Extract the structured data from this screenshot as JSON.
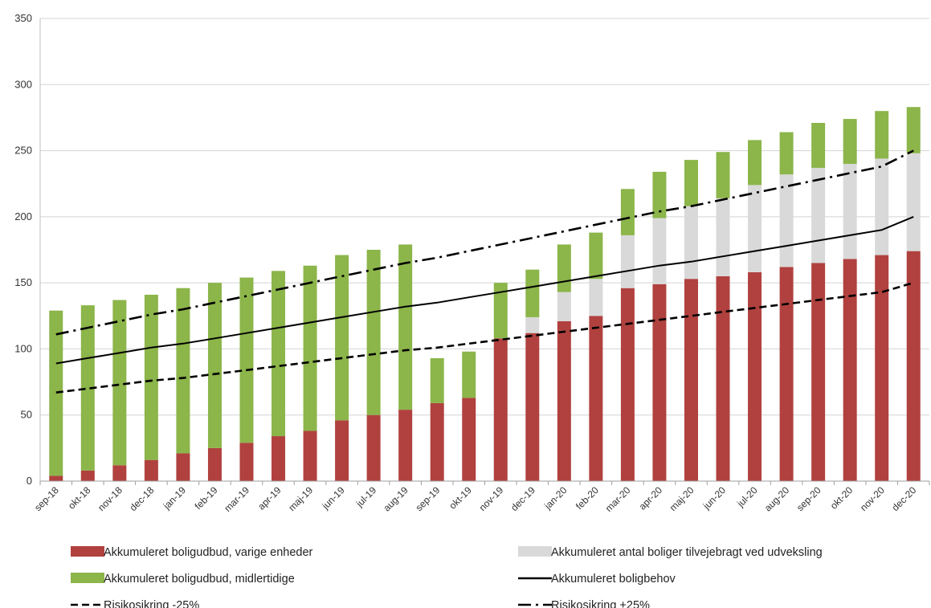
{
  "chart_data": {
    "type": "bar",
    "stacked": true,
    "categories": [
      "sep-18",
      "okt-18",
      "nov-18",
      "dec-18",
      "jan-19",
      "feb-19",
      "mar-19",
      "apr-19",
      "maj-19",
      "jun-19",
      "jul-19",
      "aug-19",
      "sep-19",
      "okt-19",
      "nov-19",
      "dec-19",
      "jan-20",
      "feb-20",
      "mar-20",
      "apr-20",
      "maj-20",
      "jun-20",
      "jul-20",
      "aug-20",
      "sep-20",
      "okt-20",
      "nov-20",
      "dec-20"
    ],
    "ylim": [
      0,
      350
    ],
    "yticks": [
      0,
      50,
      100,
      150,
      200,
      250,
      300,
      350
    ],
    "grid": true,
    "legend_position": "bottom",
    "series": [
      {
        "name": "Akkumuleret boligudbud, varige enheder",
        "kind": "bar",
        "color": "#b0413e",
        "values": [
          4,
          8,
          12,
          16,
          21,
          25,
          29,
          34,
          38,
          46,
          50,
          54,
          59,
          63,
          108,
          112,
          121,
          125,
          146,
          149,
          153,
          155,
          158,
          162,
          165,
          168,
          171,
          174
        ]
      },
      {
        "name": "Akkumuleret antal boliger tilvejebragt ved udveksling",
        "kind": "bar",
        "color": "#d9d9d9",
        "values": [
          0,
          0,
          0,
          0,
          0,
          0,
          0,
          0,
          0,
          0,
          0,
          0,
          0,
          0,
          0,
          12,
          22,
          28,
          40,
          50,
          55,
          59,
          66,
          70,
          72,
          72,
          73,
          74
        ]
      },
      {
        "name": "Akkumuleret boligudbud, midlertidige",
        "kind": "bar",
        "color": "#8cb54a",
        "values": [
          125,
          125,
          125,
          125,
          125,
          125,
          125,
          125,
          125,
          125,
          125,
          125,
          34,
          35,
          42,
          36,
          36,
          35,
          35,
          35,
          35,
          35,
          34,
          32,
          34,
          34,
          36,
          35
        ]
      },
      {
        "name": "Akkumuleret boligbehov",
        "kind": "line",
        "style": "solid",
        "color": "#000000",
        "values": [
          89,
          93,
          97,
          101,
          104,
          108,
          112,
          116,
          120,
          124,
          128,
          132,
          135,
          139,
          143,
          147,
          151,
          155,
          159,
          163,
          166,
          170,
          174,
          178,
          182,
          186,
          190,
          200
        ]
      },
      {
        "name": "Risikosikring -25%",
        "kind": "line",
        "style": "dashed",
        "color": "#000000",
        "values": [
          67,
          70,
          73,
          76,
          78,
          81,
          84,
          87,
          90,
          93,
          96,
          99,
          101,
          104,
          107,
          110,
          113,
          116,
          119,
          122,
          125,
          128,
          131,
          134,
          137,
          140,
          143,
          150
        ]
      },
      {
        "name": "Risikosikring +25%",
        "kind": "line",
        "style": "dashdot",
        "color": "#000000",
        "values": [
          111,
          116,
          121,
          126,
          130,
          135,
          140,
          145,
          150,
          155,
          160,
          165,
          169,
          174,
          179,
          184,
          189,
          194,
          199,
          204,
          208,
          213,
          218,
          223,
          228,
          233,
          238,
          250
        ]
      }
    ]
  }
}
